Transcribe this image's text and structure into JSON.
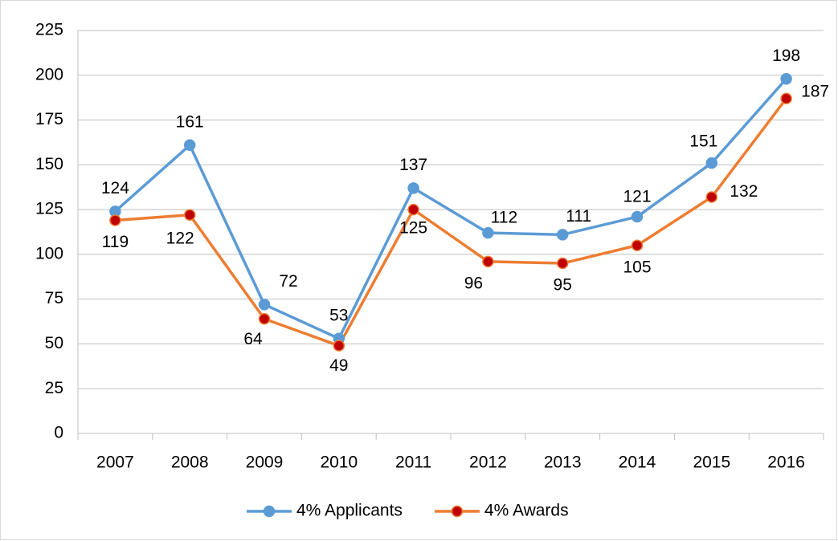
{
  "chart_data": {
    "type": "line",
    "categories": [
      "2007",
      "2008",
      "2009",
      "2010",
      "2011",
      "2012",
      "2013",
      "2014",
      "2015",
      "2016"
    ],
    "series": [
      {
        "name": "4% Applicants",
        "color": "#5b9bd5",
        "values": [
          124,
          161,
          72,
          53,
          137,
          112,
          111,
          121,
          151,
          198
        ]
      },
      {
        "name": "4% Awards",
        "color": "#ed7d31",
        "marker_color": "#c00000",
        "values": [
          119,
          122,
          64,
          49,
          125,
          96,
          95,
          105,
          132,
          187
        ]
      }
    ],
    "ylim": [
      0,
      225
    ],
    "yticks": [
      0,
      25,
      50,
      75,
      100,
      125,
      150,
      175,
      200,
      225
    ],
    "grid": true,
    "legend": "bottom"
  }
}
